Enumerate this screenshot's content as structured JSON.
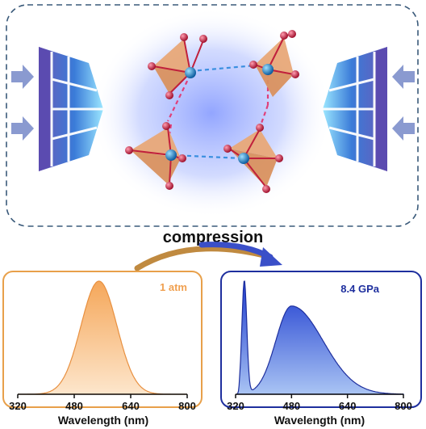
{
  "process_label": "compression",
  "top_panel": {
    "description_free": true
  },
  "spectra": [
    {
      "condition": "1 atm",
      "accent_color": "#f0a050",
      "fill_color": "#f5b46e",
      "x_axis": {
        "label": "Wavelength (nm)",
        "ticks": [
          "320",
          "480",
          "640",
          "800"
        ],
        "range": [
          320,
          800
        ]
      },
      "peak_center_nm": 550,
      "peak_fwhm_nm": 120
    },
    {
      "condition": "8.4 GPa",
      "accent_color": "#1e2f9e",
      "fill_color": "#2f62dd",
      "x_axis": {
        "label": "Wavelength (nm)",
        "ticks": [
          "320",
          "480",
          "640",
          "800"
        ],
        "range": [
          320,
          800
        ]
      },
      "sharp_peak_nm": 345,
      "broad_peak_nm": 480
    }
  ],
  "colors": {
    "frame_dash": "#3a5a7a",
    "tetra": "#e6b08a",
    "metal_atom": "#2a8fd0",
    "oxygen_atom": "#c0203c",
    "dash_blue": "#3a8fe0",
    "dash_pink": "#e0407a",
    "anvil": "#4a78d8",
    "arrow": "#8090c8"
  }
}
